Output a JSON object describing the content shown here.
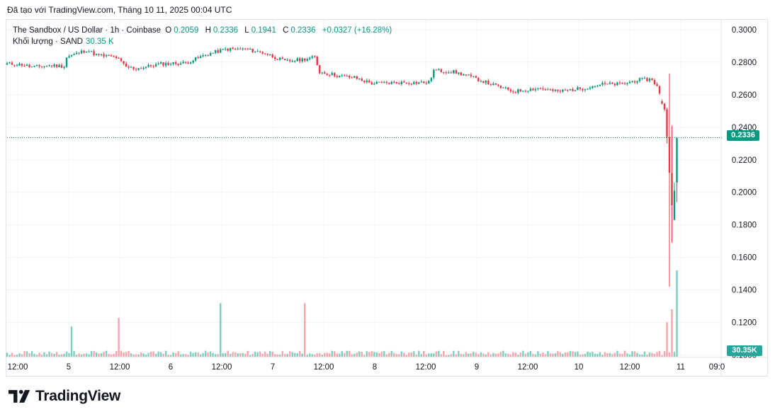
{
  "caption": "Đã tạo với TradingView.com, Tháng 10 11, 2025 00:04 UTC",
  "legend": {
    "symbol": "The Sandbox / US Dollar · 1h · Coinbase",
    "o_label": "O",
    "o_value": "0.2059",
    "h_label": "H",
    "h_value": "0.2336",
    "l_label": "L",
    "l_value": "0.1941",
    "c_label": "C",
    "c_value": "0.2336",
    "change": "+0.0327 (+16.28%)"
  },
  "volume_legend": {
    "label": "Khối lượng · SAND",
    "value": "30.35 K"
  },
  "price_tag": "0.2336",
  "volume_tag": "30.35K",
  "brand": {
    "name": "TradingView",
    "logo_icon": "tradingview-logo-icon"
  },
  "colors": {
    "up": "#089981",
    "down": "#f23645",
    "up_volume": "#7fcfc1",
    "down_volume": "#f7a6ab",
    "grid": "#f0f3fa"
  },
  "chart_data": {
    "type": "candlestick",
    "title": "The Sandbox / US Dollar · 1h · Coinbase",
    "y_ticks": [
      "0.3000",
      "0.2800",
      "0.2600",
      "0.2400",
      "0.2200",
      "0.2000",
      "0.1800",
      "0.1600",
      "0.1400",
      "0.1200",
      "0.1000"
    ],
    "ylim": [
      0.0985,
      0.3065
    ],
    "x_ticks": [
      "12:00",
      "5",
      "12:00",
      "6",
      "12:00",
      "7",
      "12:00",
      "8",
      "12:00",
      "9",
      "12:00",
      "10",
      "12:00",
      "11",
      "09:0"
    ],
    "grid": true,
    "last_price": 0.2336,
    "volume_last": "30.35K",
    "series": [
      {
        "name": "Price",
        "anchors": [
          [
            0,
            0.279
          ],
          [
            6,
            0.2785
          ],
          [
            10,
            0.277
          ],
          [
            18,
            0.278
          ],
          [
            23,
            0.2775
          ],
          [
            24,
            0.283
          ],
          [
            32,
            0.2875
          ],
          [
            36,
            0.2845
          ],
          [
            44,
            0.283
          ],
          [
            48,
            0.277
          ],
          [
            52,
            0.276
          ],
          [
            62,
            0.279
          ],
          [
            72,
            0.2795
          ],
          [
            80,
            0.2845
          ],
          [
            88,
            0.288
          ],
          [
            96,
            0.288
          ],
          [
            104,
            0.2855
          ],
          [
            112,
            0.2805
          ],
          [
            118,
            0.2815
          ],
          [
            124,
            0.283
          ],
          [
            126,
            0.274
          ],
          [
            134,
            0.2715
          ],
          [
            140,
            0.2705
          ],
          [
            147,
            0.267
          ],
          [
            160,
            0.2675
          ],
          [
            170,
            0.2675
          ],
          [
            172,
            0.275
          ],
          [
            180,
            0.274
          ],
          [
            186,
            0.2715
          ],
          [
            196,
            0.266
          ],
          [
            204,
            0.262
          ],
          [
            214,
            0.264
          ],
          [
            222,
            0.262
          ],
          [
            232,
            0.264
          ],
          [
            240,
            0.2665
          ],
          [
            248,
            0.2665
          ],
          [
            254,
            0.269
          ],
          [
            260,
            0.2695
          ],
          [
            262,
            0.265
          ],
          [
            264,
            0.256
          ]
        ]
      }
    ],
    "final_candles": [
      {
        "o": 0.256,
        "h": 0.257,
        "l": 0.254,
        "c": 0.2545
      },
      {
        "o": 0.2545,
        "h": 0.255,
        "l": 0.25,
        "c": 0.251
      },
      {
        "o": 0.251,
        "h": 0.252,
        "l": 0.23,
        "c": 0.234
      },
      {
        "o": 0.234,
        "h": 0.273,
        "l": 0.142,
        "c": 0.212
      },
      {
        "o": 0.212,
        "h": 0.241,
        "l": 0.169,
        "c": 0.192
      },
      {
        "o": 0.183,
        "h": 0.206,
        "l": 0.183,
        "c": 0.201
      },
      {
        "o": 0.2059,
        "h": 0.2336,
        "l": 0.1941,
        "c": 0.2336
      }
    ],
    "volume_events": [
      [
        26,
        0.35
      ],
      [
        45,
        0.45
      ],
      [
        86,
        0.62
      ],
      [
        120,
        0.62
      ],
      [
        266,
        0.4
      ],
      [
        268,
        0.55
      ],
      [
        270,
        1.0
      ],
      [
        271,
        0.6
      ],
      [
        272,
        0.4
      ]
    ]
  }
}
